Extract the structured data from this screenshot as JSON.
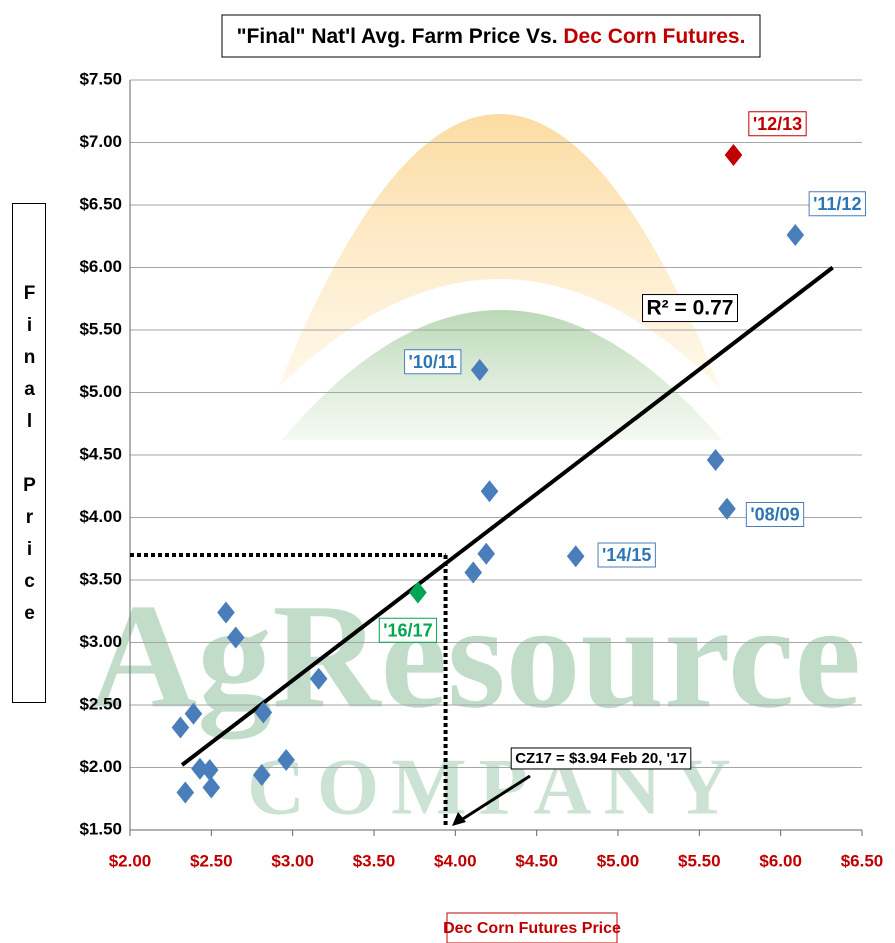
{
  "chart_data": {
    "type": "scatter",
    "title": [
      "\"Final\" Nat'l Avg. Farm Price Vs.",
      "Dec Corn Futures."
    ],
    "x_label": "Dec Corn Futures Price",
    "y_label": "Final Price",
    "watermark": [
      "AgResource",
      "COMPANY"
    ],
    "xlim": [
      2.0,
      6.5
    ],
    "ylim": [
      1.5,
      7.5
    ],
    "xticks": [
      {
        "value": 2.0,
        "label": "$2.00"
      },
      {
        "value": 2.5,
        "label": "$2.50"
      },
      {
        "value": 3.0,
        "label": "$3.00"
      },
      {
        "value": 3.5,
        "label": "$3.50"
      },
      {
        "value": 4.0,
        "label": "$4.00"
      },
      {
        "value": 4.5,
        "label": "$4.50"
      },
      {
        "value": 5.0,
        "label": "$5.00"
      },
      {
        "value": 5.5,
        "label": "$5.50"
      },
      {
        "value": 6.0,
        "label": "$6.00"
      },
      {
        "value": 6.5,
        "label": "$6.50"
      }
    ],
    "yticks": [
      {
        "value": 1.5,
        "label": "$1.50"
      },
      {
        "value": 2.0,
        "label": "$2.00"
      },
      {
        "value": 2.5,
        "label": "$2.50"
      },
      {
        "value": 3.0,
        "label": "$3.00"
      },
      {
        "value": 3.5,
        "label": "$3.50"
      },
      {
        "value": 4.0,
        "label": "$4.00"
      },
      {
        "value": 4.5,
        "label": "$4.50"
      },
      {
        "value": 5.0,
        "label": "$5.00"
      },
      {
        "value": 5.5,
        "label": "$5.50"
      },
      {
        "value": 6.0,
        "label": "$6.00"
      },
      {
        "value": 6.5,
        "label": "$6.50"
      },
      {
        "value": 7.0,
        "label": "$7.00"
      },
      {
        "value": 7.5,
        "label": "$7.50"
      }
    ],
    "grid": true,
    "series": [
      {
        "color": "#4a7ebb",
        "x": [
          2.31,
          2.39,
          2.34,
          2.43,
          2.49,
          2.5,
          2.59,
          2.65,
          2.82,
          2.81,
          2.96,
          3.16,
          4.11,
          4.19,
          4.21,
          4.15,
          4.74,
          5.6,
          5.67,
          6.09
        ],
        "values": [
          2.32,
          2.43,
          1.8,
          1.99,
          1.98,
          1.84,
          3.24,
          3.04,
          2.44,
          1.94,
          2.06,
          2.71,
          3.56,
          3.71,
          4.21,
          5.18,
          3.69,
          4.46,
          4.07,
          6.26
        ],
        "labels": [
          null,
          null,
          null,
          null,
          null,
          null,
          null,
          null,
          null,
          null,
          null,
          null,
          null,
          null,
          null,
          "'10/11",
          "'14/15",
          null,
          "'08/09",
          "'11/12"
        ]
      },
      {
        "color": "#00a651",
        "x": [
          3.77
        ],
        "values": [
          3.4
        ],
        "labels": [
          "'16/17"
        ]
      },
      {
        "color": "#c00000",
        "x": [
          5.71
        ],
        "values": [
          6.9
        ],
        "labels": [
          "'12/13"
        ]
      }
    ],
    "trendline": {
      "x": [
        2.32,
        6.32
      ],
      "y": [
        2.02,
        6.0
      ],
      "label": "R² = 0.77"
    },
    "reference": {
      "x": 3.94,
      "y": 3.7,
      "label": "CZ17 = $3.94 Feb 20, '17"
    }
  }
}
